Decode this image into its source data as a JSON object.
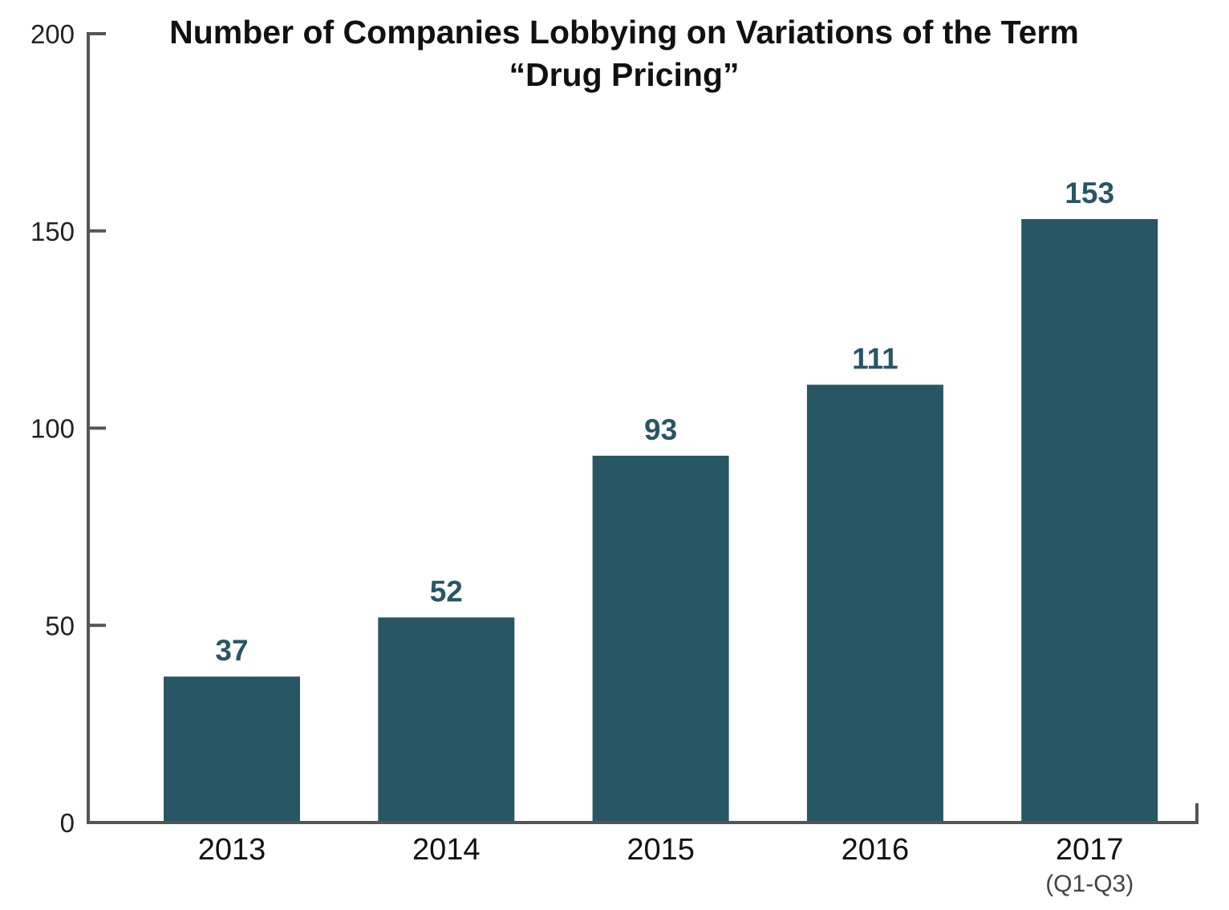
{
  "chart_data": {
    "type": "bar",
    "title": "Number of Companies Lobbying on Variations of the Term",
    "title_line2": "“Drug Pricing”",
    "categories": [
      "2013",
      "2014",
      "2015",
      "2016",
      "2017"
    ],
    "category_sublabels": [
      "",
      "",
      "",
      "",
      "(Q1-Q3)"
    ],
    "values": [
      37,
      52,
      93,
      111,
      153
    ],
    "data_labels": [
      "37",
      "52",
      "93",
      "111",
      "153"
    ],
    "xlabel": "",
    "ylabel": "",
    "ylim": [
      0,
      200
    ],
    "yticks": [
      0,
      50,
      100,
      150,
      200
    ],
    "grid": false,
    "legend": "none",
    "colors": {
      "bar": "#285665",
      "label": "#285665",
      "axis": "#555555"
    }
  }
}
